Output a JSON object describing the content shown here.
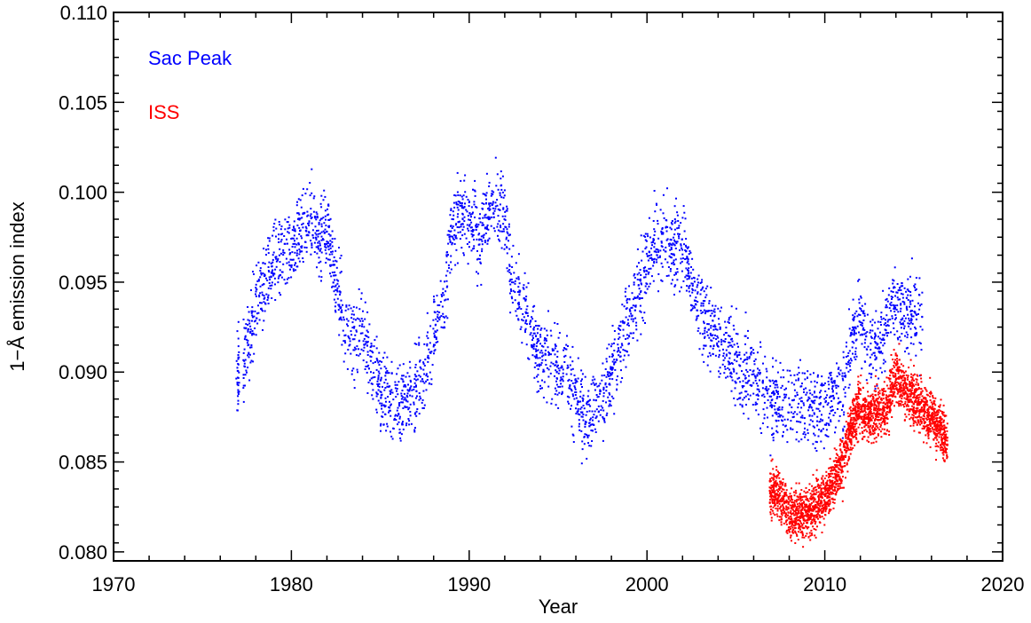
{
  "chart_data": {
    "type": "scatter",
    "xlabel": "Year",
    "ylabel": "1−Å emission index",
    "xlim": [
      1970,
      2020
    ],
    "ylim": [
      0.0795,
      0.11
    ],
    "x_ticks": [
      1970,
      1980,
      1990,
      2000,
      2010,
      2020
    ],
    "x_tick_labels": [
      "1970",
      "1980",
      "1990",
      "2000",
      "2010",
      "2020"
    ],
    "y_ticks": [
      0.08,
      0.085,
      0.09,
      0.095,
      0.1,
      0.105,
      0.11
    ],
    "y_tick_labels": [
      "0.080",
      "0.085",
      "0.090",
      "0.095",
      "0.100",
      "0.105",
      "0.110"
    ],
    "grid": false,
    "legend_position": "top-left",
    "series": [
      {
        "name": "Sac Peak",
        "color": "#0000ff",
        "trend": [
          [
            1976.9,
            0.0895
          ],
          [
            1977.2,
            0.0905
          ],
          [
            1978.0,
            0.0935
          ],
          [
            1979.0,
            0.096
          ],
          [
            1980.0,
            0.097
          ],
          [
            1981.0,
            0.0985
          ],
          [
            1981.5,
            0.097
          ],
          [
            1982.0,
            0.098
          ],
          [
            1982.5,
            0.095
          ],
          [
            1983.0,
            0.0925
          ],
          [
            1983.5,
            0.0915
          ],
          [
            1984.0,
            0.0925
          ],
          [
            1984.5,
            0.0905
          ],
          [
            1985.0,
            0.089
          ],
          [
            1986.0,
            0.0885
          ],
          [
            1987.0,
            0.089
          ],
          [
            1987.5,
            0.09
          ],
          [
            1988.0,
            0.092
          ],
          [
            1988.5,
            0.0935
          ],
          [
            1989.0,
            0.0975
          ],
          [
            1989.5,
            0.099
          ],
          [
            1990.0,
            0.0985
          ],
          [
            1990.5,
            0.0975
          ],
          [
            1991.0,
            0.099
          ],
          [
            1991.5,
            0.0995
          ],
          [
            1992.0,
            0.099
          ],
          [
            1992.5,
            0.0945
          ],
          [
            1993.0,
            0.094
          ],
          [
            1993.5,
            0.0925
          ],
          [
            1994.0,
            0.091
          ],
          [
            1995.0,
            0.0905
          ],
          [
            1995.5,
            0.0895
          ],
          [
            1996.0,
            0.0885
          ],
          [
            1996.5,
            0.0875
          ],
          [
            1997.0,
            0.088
          ],
          [
            1997.5,
            0.0885
          ],
          [
            1998.0,
            0.09
          ],
          [
            1998.5,
            0.0915
          ],
          [
            1999.0,
            0.093
          ],
          [
            1999.5,
            0.0945
          ],
          [
            2000.0,
            0.096
          ],
          [
            2000.5,
            0.097
          ],
          [
            2001.0,
            0.0975
          ],
          [
            2001.5,
            0.0965
          ],
          [
            2002.0,
            0.097
          ],
          [
            2002.5,
            0.095
          ],
          [
            2003.0,
            0.0935
          ],
          [
            2004.0,
            0.092
          ],
          [
            2005.0,
            0.0905
          ],
          [
            2006.0,
            0.0895
          ],
          [
            2007.0,
            0.0885
          ],
          [
            2008.0,
            0.088
          ],
          [
            2009.0,
            0.088
          ],
          [
            2010.0,
            0.088
          ],
          [
            2010.5,
            0.0885
          ],
          [
            2011.0,
            0.089
          ],
          [
            2011.5,
            0.092
          ],
          [
            2012.0,
            0.093
          ],
          [
            2012.5,
            0.091
          ],
          [
            2013.0,
            0.0915
          ],
          [
            2014.0,
            0.094
          ],
          [
            2014.5,
            0.093
          ],
          [
            2015.0,
            0.0935
          ],
          [
            2015.5,
            0.092
          ]
        ],
        "scatter": 0.0022
      },
      {
        "name": "ISS",
        "color": "#ff0000",
        "trend": [
          [
            2006.9,
            0.0835
          ],
          [
            2007.5,
            0.083
          ],
          [
            2008.0,
            0.0822
          ],
          [
            2008.5,
            0.082
          ],
          [
            2009.0,
            0.0822
          ],
          [
            2009.5,
            0.0825
          ],
          [
            2010.0,
            0.083
          ],
          [
            2010.5,
            0.084
          ],
          [
            2011.0,
            0.085
          ],
          [
            2011.5,
            0.087
          ],
          [
            2012.0,
            0.088
          ],
          [
            2012.5,
            0.0875
          ],
          [
            2013.0,
            0.088
          ],
          [
            2013.5,
            0.088
          ],
          [
            2014.0,
            0.09
          ],
          [
            2014.5,
            0.089
          ],
          [
            2015.0,
            0.0885
          ],
          [
            2015.5,
            0.088
          ],
          [
            2016.0,
            0.0875
          ],
          [
            2016.5,
            0.087
          ],
          [
            2016.9,
            0.086
          ]
        ],
        "scatter": 0.0014
      }
    ]
  }
}
